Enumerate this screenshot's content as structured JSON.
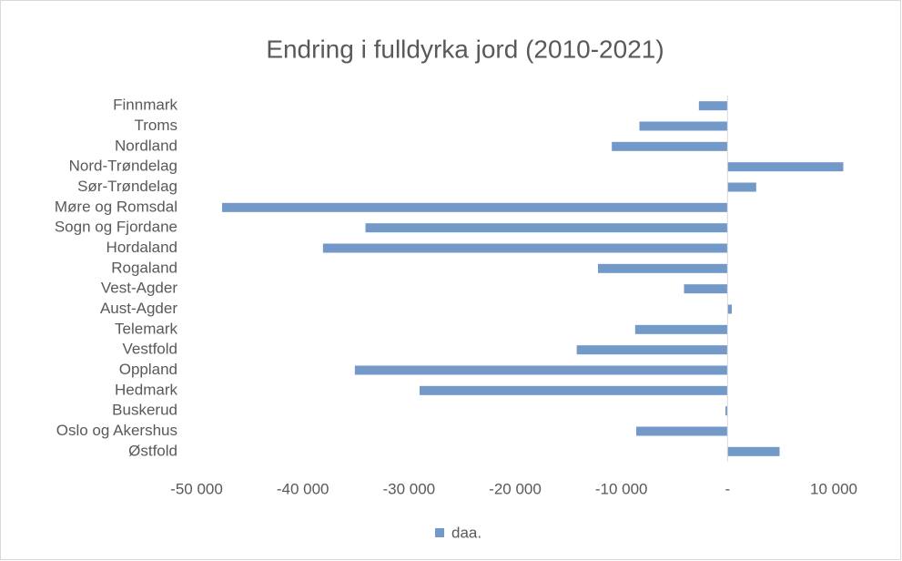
{
  "chart_data": {
    "type": "bar",
    "orientation": "horizontal",
    "title": "Endring i fulldyrka jord (2010-2021)",
    "categories": [
      "Finnmark",
      "Troms",
      "Nordland",
      "Nord-Trøndelag",
      "Sør-Trøndelag",
      "Møre og Romsdal",
      "Sogn og Fjordane",
      "Hordaland",
      "Rogaland",
      "Vest-Agder",
      "Aust-Agder",
      "Telemark",
      "Vestfold",
      "Oppland",
      "Hedmark",
      "Buskerud",
      "Oslo og Akershus",
      "Østfold"
    ],
    "series": [
      {
        "name": "daa.",
        "color": "#7399c9",
        "values": [
          -2700,
          -8300,
          -10900,
          10900,
          2700,
          -47600,
          -34100,
          -38100,
          -12200,
          -4100,
          400,
          -8700,
          -14200,
          -35100,
          -29000,
          -200,
          -8600,
          4900
        ]
      }
    ],
    "xlim": [
      -50000,
      10000
    ],
    "xticks": [
      {
        "value": -50000,
        "label": "-50 000"
      },
      {
        "value": -40000,
        "label": "-40 000"
      },
      {
        "value": -30000,
        "label": "-30 000"
      },
      {
        "value": -20000,
        "label": "-20 000"
      },
      {
        "value": -10000,
        "label": "-10 000"
      },
      {
        "value": 0,
        "label": "-"
      },
      {
        "value": 10000,
        "label": "10 000"
      }
    ],
    "legend": "bottom"
  }
}
